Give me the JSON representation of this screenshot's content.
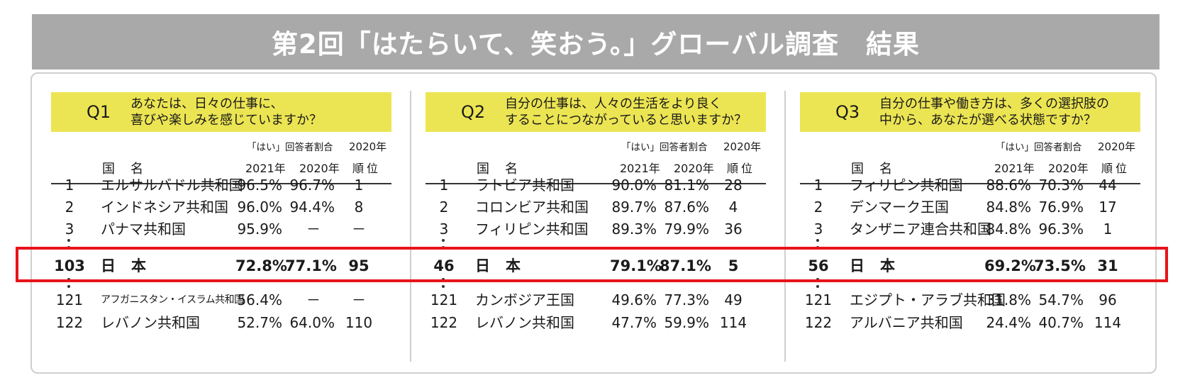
{
  "title": "第2回「はたらいて、笑おう。」グローバル調査　結果",
  "columns": {
    "name": "国名",
    "ratio_header": "「はい」回答者割合",
    "y2021": "2021年",
    "y2020": "2020年",
    "rank_year": "2020年",
    "rank": "順位"
  },
  "highlight_color": "#e8141a",
  "question_color": "#ece553",
  "panels": [
    {
      "q": "Q1",
      "line1": "あなたは、日々の仕事に、",
      "line2": "喜びや楽しみを感じていますか？",
      "rows": [
        {
          "rank": "1",
          "name": "エルサルバドル共和国",
          "v2021": "96.5%",
          "v2020": "96.7%",
          "rank2020": "1"
        },
        {
          "rank": "2",
          "name": "インドネシア共和国",
          "v2021": "96.0%",
          "v2020": "94.4%",
          "rank2020": "8"
        },
        {
          "rank": "3",
          "name": "パナマ共和国",
          "v2021": "95.9%",
          "v2020": "－",
          "rank2020": "－"
        }
      ],
      "japan": {
        "rank": "103",
        "name": "日本",
        "v2021": "72.8%",
        "v2020": "77.1%",
        "rank2020": "95"
      },
      "bottom": [
        {
          "rank": "121",
          "name": "アフガニスタン・イスラム共和国",
          "v2021": "56.4%",
          "v2020": "－",
          "rank2020": "－"
        },
        {
          "rank": "122",
          "name": "レバノン共和国",
          "v2021": "52.7%",
          "v2020": "64.0%",
          "rank2020": "110"
        }
      ]
    },
    {
      "q": "Q2",
      "line1": "自分の仕事は、人々の生活をより良く",
      "line2": "することにつながっていると思いますか？",
      "rows": [
        {
          "rank": "1",
          "name": "ラトビア共和国",
          "v2021": "90.0%",
          "v2020": "81.1%",
          "rank2020": "28"
        },
        {
          "rank": "2",
          "name": "コロンビア共和国",
          "v2021": "89.7%",
          "v2020": "87.6%",
          "rank2020": "4"
        },
        {
          "rank": "3",
          "name": "フィリピン共和国",
          "v2021": "89.3%",
          "v2020": "79.9%",
          "rank2020": "36"
        }
      ],
      "japan": {
        "rank": "46",
        "name": "日本",
        "v2021": "79.1%",
        "v2020": "87.1%",
        "rank2020": "5"
      },
      "bottom": [
        {
          "rank": "121",
          "name": "カンボジア王国",
          "v2021": "49.6%",
          "v2020": "77.3%",
          "rank2020": "49"
        },
        {
          "rank": "122",
          "name": "レバノン共和国",
          "v2021": "47.7%",
          "v2020": "59.9%",
          "rank2020": "114"
        }
      ]
    },
    {
      "q": "Q3",
      "line1": "自分の仕事や働き方は、多くの選択肢の",
      "line2": "中から、あなたが選べる状態ですか？",
      "rows": [
        {
          "rank": "1",
          "name": "フィリピン共和国",
          "v2021": "88.6%",
          "v2020": "70.3%",
          "rank2020": "44"
        },
        {
          "rank": "2",
          "name": "デンマーク王国",
          "v2021": "84.8%",
          "v2020": "76.9%",
          "rank2020": "17"
        },
        {
          "rank": "3",
          "name": "タンザニア連合共和国",
          "v2021": "84.8%",
          "v2020": "96.3%",
          "rank2020": "1"
        }
      ],
      "japan": {
        "rank": "56",
        "name": "日本",
        "v2021": "69.2%",
        "v2020": "73.5%",
        "rank2020": "31"
      },
      "bottom": [
        {
          "rank": "121",
          "name": "エジプト・アラブ共和国",
          "v2021": "31.8%",
          "v2020": "54.7%",
          "rank2020": "96"
        },
        {
          "rank": "122",
          "name": "アルバニア共和国",
          "v2021": "24.4%",
          "v2020": "40.7%",
          "rank2020": "114"
        }
      ]
    }
  ]
}
